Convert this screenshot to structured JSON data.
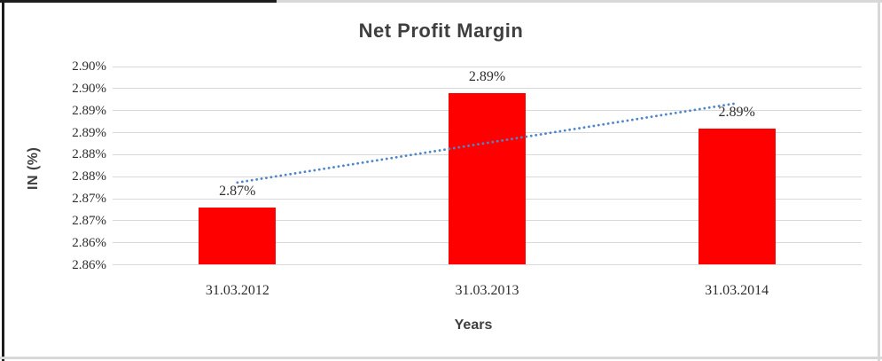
{
  "window": {
    "background": "#FFFFFF"
  },
  "colors": {
    "bar": "#FF0000",
    "gridline": "#D9D9D9",
    "trendline": "#4E86C8",
    "heading_text": "#3F3F3F",
    "tick_text": "#2E2E2E",
    "border_dark": "#1C1C1C",
    "border_light": "#D8D8D8"
  },
  "chart_data": {
    "type": "bar",
    "title": "Net Profit Margin",
    "xlabel": "Years",
    "ylabel": "IN (%)",
    "categories": [
      "31.03.2012",
      "31.03.2013",
      "31.03.2014"
    ],
    "series": [
      {
        "name": "Net Profit Margin",
        "values": [
          2.868,
          2.894,
          2.886
        ]
      }
    ],
    "data_labels": [
      "2.87%",
      "2.89%",
      "2.89%"
    ],
    "y_axis": {
      "min": 2.855,
      "max": 2.9,
      "step": 0.005,
      "tick_labels_top_to_bottom": [
        "2.90%",
        "2.90%",
        "2.89%",
        "2.89%",
        "2.88%",
        "2.88%",
        "2.87%",
        "2.87%",
        "2.86%",
        "2.86%"
      ]
    },
    "trendline": {
      "type": "linear",
      "style": "dotted"
    },
    "grid": true,
    "legend": "none"
  }
}
